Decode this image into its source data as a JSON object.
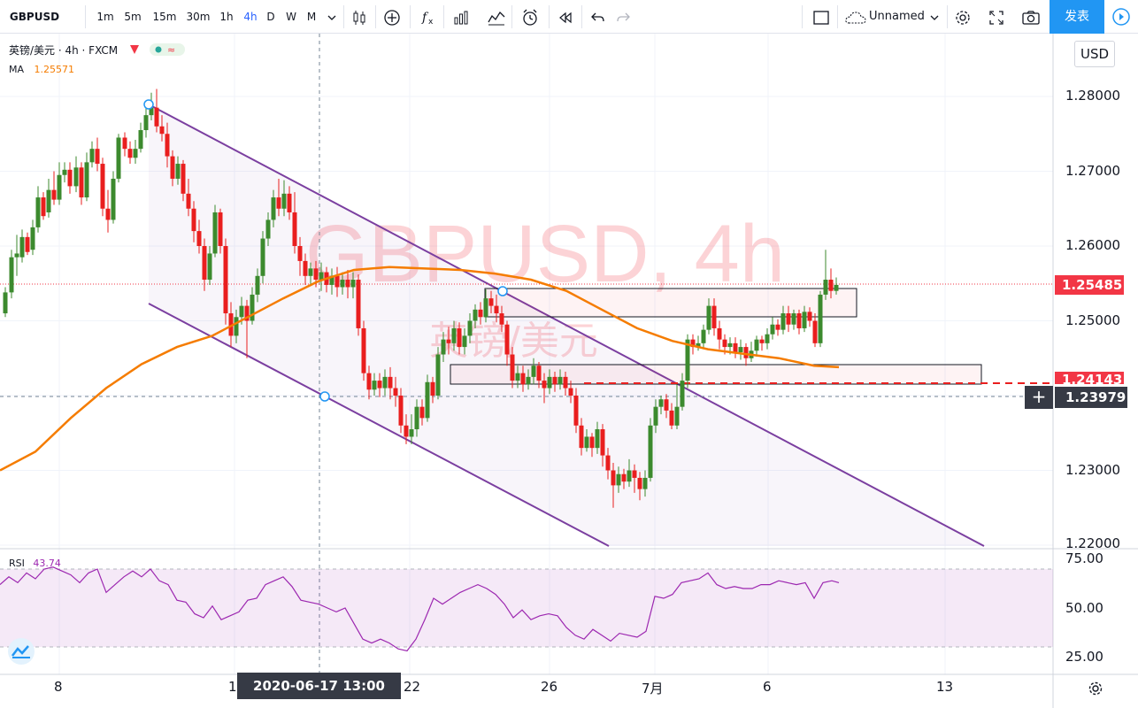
{
  "toolbar": {
    "symbol": "GBPUSD",
    "intervals": [
      "1m",
      "5m",
      "15m",
      "30m",
      "1h",
      "4h",
      "D",
      "W",
      "M"
    ],
    "active_interval": "4h",
    "layout_name": "Unnamed",
    "publish_label": "发表"
  },
  "legend": {
    "title": "英镑/美元 · 4h · FXCM",
    "ma_label": "MA",
    "ma_value": "1.25571",
    "rsi_label": "RSI",
    "rsi_value": "43.74"
  },
  "watermark": {
    "symbol": "GBPUSD, 4h",
    "name": "英镑/美元"
  },
  "price_axis": {
    "currency": "USD",
    "labels": [
      "1.28000",
      "1.27000",
      "1.26000",
      "1.25000",
      "1.24000",
      "1.23000",
      "1.22000"
    ],
    "last_price": "1.25485",
    "alert_price": "1.24143",
    "crosshair_price": "1.23979"
  },
  "rsi_axis": {
    "labels": [
      "75.00",
      "50.00",
      "25.00"
    ]
  },
  "time_axis": {
    "labels": [
      "8",
      "1",
      "22",
      "26",
      "7月",
      "6",
      "13"
    ],
    "crosshair_label": "2020-06-17   13:00"
  },
  "colors": {
    "up": "#26a69a",
    "candle_up": "#3c8a2e",
    "candle_down": "#e91e1e",
    "ma": "#f57c00",
    "channel": "#7b3fa0",
    "rsi": "#9c27b0",
    "last_price": "#f23645",
    "accent": "#2196f3"
  },
  "icons": [
    "bar-style-icon",
    "add-indicator-icon",
    "fx-icon",
    "compare-icon",
    "templates-icon",
    "alert-icon",
    "replay-icon",
    "undo-icon",
    "redo-icon",
    "fullscreen-icon",
    "settings-icon",
    "snapshot-icon",
    "play-icon",
    "gear-icon",
    "tradingview-logo-icon"
  ]
}
